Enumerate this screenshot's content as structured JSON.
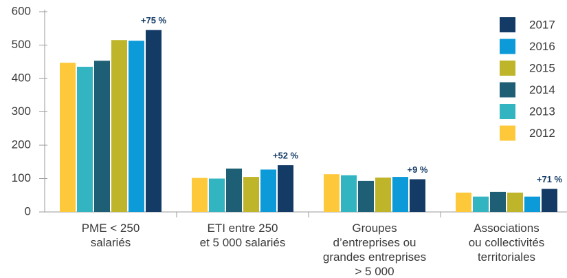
{
  "chart_data": {
    "type": "bar",
    "categories": [
      [
        "PME < 250",
        "salariés"
      ],
      [
        "ETI entre 250",
        "et 5 000 salariés"
      ],
      [
        "Groupes",
        "d’entreprises ou",
        "grandes entreprises",
        "> 5 000"
      ],
      [
        "Associations",
        "ou collectivités",
        "territoriales"
      ]
    ],
    "series": [
      {
        "name": "2012",
        "color": "#fdc93a",
        "values": [
          447,
          102,
          113,
          58
        ]
      },
      {
        "name": "2013",
        "color": "#33b5c1",
        "values": [
          435,
          100,
          110,
          46
        ]
      },
      {
        "name": "2014",
        "color": "#1e5f75",
        "values": [
          453,
          130,
          93,
          60
        ]
      },
      {
        "name": "2015",
        "color": "#bfb52a",
        "values": [
          515,
          105,
          103,
          58
        ]
      },
      {
        "name": "2016",
        "color": "#0c9ad8",
        "values": [
          513,
          127,
          105,
          46
        ]
      },
      {
        "name": "2017",
        "color": "#143b66",
        "values": [
          545,
          140,
          98,
          69
        ]
      }
    ],
    "annotations": [
      "+75 %",
      "+52 %",
      "+9 %",
      "+71 %"
    ],
    "ylim": [
      0,
      600
    ],
    "yticks": [
      0,
      100,
      200,
      300,
      400,
      500,
      600
    ],
    "legend": "top-right"
  }
}
